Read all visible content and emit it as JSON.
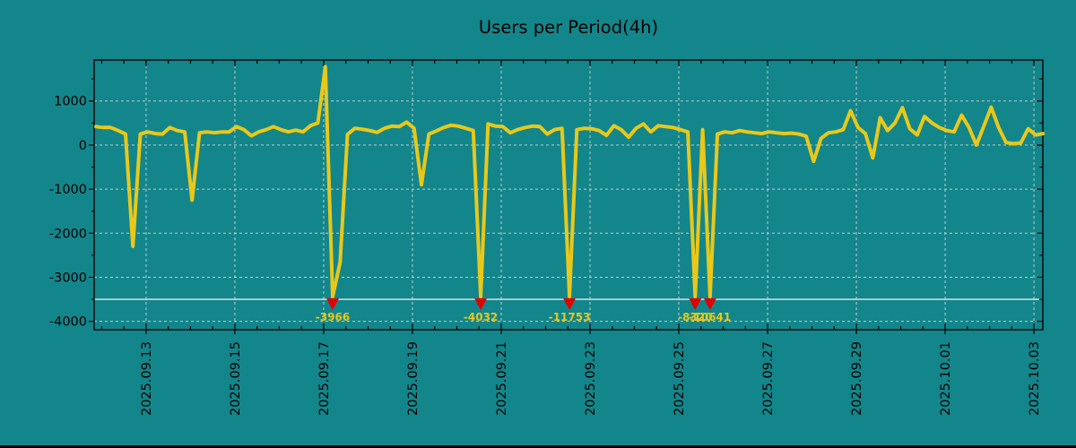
{
  "window": {
    "bottom_border_color": "#000000"
  },
  "chart_data": {
    "type": "line",
    "title": "Users per Period(4h)",
    "x_axis": {
      "tick_labels": [
        "2025.09.13",
        "2025.09.15",
        "2025.09.17",
        "2025.09.19",
        "2025.09.21",
        "2025.09.23",
        "2025.09.25",
        "2025.09.27",
        "2025.09.29",
        "2025.10.01",
        "2025.10.03"
      ],
      "tick_day_offsets": [
        2,
        4,
        6,
        8,
        10,
        12,
        14,
        16,
        18,
        20,
        22
      ],
      "minor_tick_step_days": 0.5,
      "xlim_day_offsets": [
        0.83,
        22.2
      ],
      "day_offset_origin": "2025.09.11"
    },
    "y_axis": {
      "tick_labels": [
        "1000",
        "0",
        "-1000",
        "-2000",
        "-3000",
        "-4000"
      ],
      "tick_values": [
        1000,
        0,
        -1000,
        -2000,
        -3000,
        -4000
      ],
      "minor_tick_step": 500,
      "ylim": [
        -4190,
        1930
      ]
    },
    "grid": true,
    "legend": "none",
    "clip_line_value": -3500,
    "series": [
      {
        "name": "users-per-4h",
        "sample_interval_hours": 4,
        "x_start_day_offset": 0.87,
        "x_step_days": 0.1666667,
        "values": [
          420,
          400,
          400,
          330,
          250,
          -2300,
          250,
          300,
          260,
          250,
          400,
          330,
          300,
          -1250,
          280,
          300,
          280,
          300,
          300,
          420,
          350,
          210,
          300,
          350,
          420,
          350,
          300,
          340,
          300,
          440,
          500,
          1780,
          -3966,
          -2660,
          240,
          380,
          360,
          330,
          290,
          380,
          430,
          420,
          520,
          380,
          -900,
          250,
          320,
          400,
          450,
          430,
          380,
          330,
          -4032,
          480,
          430,
          420,
          280,
          350,
          400,
          430,
          420,
          250,
          350,
          380,
          -11753,
          350,
          380,
          370,
          330,
          220,
          440,
          350,
          180,
          380,
          480,
          300,
          440,
          420,
          400,
          350,
          300,
          -8320,
          350,
          -10641,
          250,
          300,
          280,
          330,
          300,
          280,
          260,
          300,
          280,
          260,
          270,
          250,
          200,
          -370,
          150,
          280,
          300,
          350,
          780,
          400,
          260,
          -290,
          620,
          330,
          500,
          850,
          370,
          230,
          650,
          500,
          400,
          330,
          300,
          680,
          400,
          0,
          430,
          860,
          400,
          60,
          30,
          50,
          370,
          230,
          260
        ]
      }
    ],
    "annotations": [
      {
        "index": 32,
        "value": -3966,
        "label": "-3966"
      },
      {
        "index": 52,
        "value": -4032,
        "label": "-4032"
      },
      {
        "index": 64,
        "value": -11753,
        "label": "-11753"
      },
      {
        "index": 81,
        "value": -8320,
        "label": "-8320"
      },
      {
        "index": 83,
        "value": -10641,
        "label": "-10641"
      }
    ],
    "colors": {
      "background": "#12868b",
      "line": "#e9c819",
      "grid": "#c3cccc",
      "clip_line": "#e8e8e8",
      "axis": "#000000",
      "tick_text": "#000000",
      "title_text": "#000000",
      "marker": "#e10000",
      "annotation_text": "#e9c819"
    }
  }
}
